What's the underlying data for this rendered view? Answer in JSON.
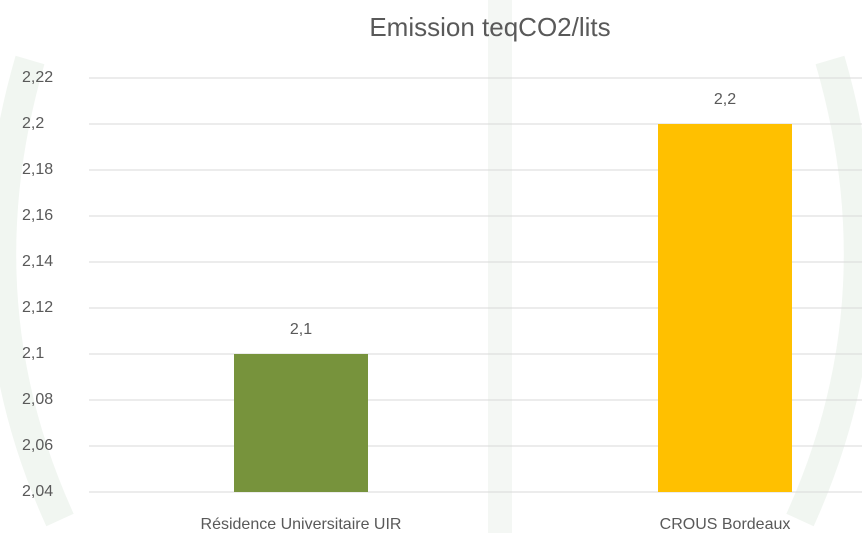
{
  "chart_data": {
    "type": "bar",
    "title": "Emission teqCO2/lits",
    "categories": [
      "Résidence Universitaire UIR",
      "CROUS Bordeaux"
    ],
    "values": [
      2.1,
      2.2
    ],
    "value_labels": [
      "2,1",
      "2,2"
    ],
    "colors": [
      "#77933c",
      "#ffc000"
    ],
    "ylim": [
      2.04,
      2.22
    ],
    "yticks": [
      {
        "value": 2.04,
        "label": "2,04"
      },
      {
        "value": 2.06,
        "label": "2,06"
      },
      {
        "value": 2.08,
        "label": "2,08"
      },
      {
        "value": 2.1,
        "label": "2,1"
      },
      {
        "value": 2.12,
        "label": "2,12"
      },
      {
        "value": 2.14,
        "label": "2,14"
      },
      {
        "value": 2.16,
        "label": "2,16"
      },
      {
        "value": 2.18,
        "label": "2,18"
      },
      {
        "value": 2.2,
        "label": "2,2"
      },
      {
        "value": 2.22,
        "label": "2,22"
      }
    ],
    "grid": true
  }
}
